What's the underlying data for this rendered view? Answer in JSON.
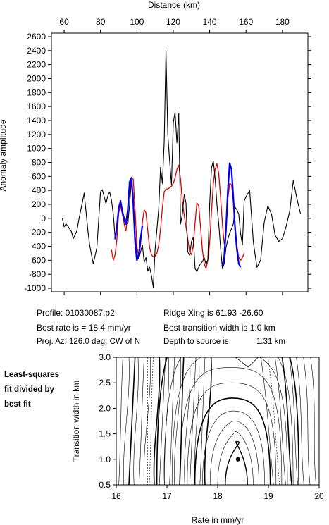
{
  "colors": {
    "observed": "#000000",
    "model": "#e00000",
    "best_fit": "#0000ee",
    "grid": "#000000"
  },
  "info": {
    "profile": "Profile: 01030087.p2",
    "best_rate": "Best rate is = 18.4 mm/yr",
    "proj_az": "Proj. Az: 126.0 deg. CW of N",
    "ridge_xing": "Ridge Xing is 61.93 -26.60",
    "best_width": "Best transition width is 1.0 km",
    "depth_label": "Depth to source is",
    "depth_value": "1.31 km"
  },
  "side_note": [
    "Least-squares",
    "fit divided by",
    "best fit"
  ],
  "chart_data": [
    {
      "type": "line",
      "title": "",
      "xlabel": "Distance (km)",
      "ylabel": "Anomaly amplitude",
      "xlim": [
        53,
        194
      ],
      "ylim": [
        -1050,
        2650
      ],
      "xticks": [
        60,
        80,
        100,
        120,
        140,
        160,
        180
      ],
      "yticks": [
        -1000,
        -800,
        -600,
        -400,
        -200,
        0,
        200,
        400,
        600,
        800,
        1000,
        1200,
        1400,
        1600,
        1800,
        2000,
        2200,
        2400,
        2600
      ],
      "series": [
        {
          "role": "observed",
          "x": [
            59,
            60,
            61,
            62,
            64,
            65,
            67,
            68,
            70,
            71,
            73,
            74,
            76,
            78,
            80,
            81,
            83,
            84,
            85,
            86,
            87,
            88,
            89,
            90,
            91,
            92,
            93,
            94,
            95,
            96,
            97,
            98,
            99,
            100,
            101,
            102,
            103,
            104,
            105,
            106,
            107,
            108,
            109,
            110,
            111,
            112,
            113,
            114,
            115,
            116,
            117,
            118,
            119,
            120,
            121,
            122,
            123,
            124,
            125,
            126,
            127,
            128,
            129,
            130,
            131,
            132,
            133,
            134,
            135,
            136,
            137,
            138,
            139,
            140,
            141,
            142,
            143,
            144,
            145,
            146,
            147,
            148,
            149,
            150,
            151,
            152,
            153,
            154,
            155,
            156,
            157,
            158,
            159,
            160,
            162,
            164,
            166,
            168,
            170,
            172,
            174,
            176,
            178,
            180,
            182,
            184,
            186,
            188,
            190
          ],
          "y": [
            0,
            -120,
            -80,
            -110,
            -190,
            -290,
            -180,
            -30,
            230,
            360,
            -160,
            -380,
            -650,
            -420,
            380,
            410,
            210,
            320,
            380,
            260,
            60,
            -280,
            -160,
            130,
            250,
            70,
            20,
            -40,
            -80,
            200,
            560,
            320,
            -240,
            -520,
            -580,
            -480,
            -380,
            -630,
            -560,
            -750,
            -700,
            -820,
            -990,
            -450,
            -160,
            140,
            730,
            500,
            1100,
            2400,
            1200,
            820,
            480,
            1370,
            1520,
            1080,
            1500,
            -80,
            60,
            340,
            220,
            -480,
            -530,
            -330,
            -270,
            -720,
            -760,
            -700,
            -650,
            -620,
            -560,
            -660,
            -590,
            200,
            720,
            820,
            580,
            200,
            -80,
            -420,
            -720,
            -650,
            -420,
            -300,
            -210,
            -150,
            -80,
            160,
            120,
            60,
            -220,
            -380,
            250,
            310,
            400,
            -340,
            -700,
            -600,
            -60,
            180,
            60,
            -240,
            -330,
            -290,
            -120,
            100,
            540,
            280,
            60
          ]
        },
        {
          "role": "model",
          "x": [
            86,
            87,
            88,
            89,
            90,
            91,
            92,
            93,
            94,
            95,
            96,
            97,
            98,
            99,
            100,
            101,
            102,
            103,
            104,
            105,
            106,
            107,
            108,
            109,
            110,
            111,
            112,
            113,
            114,
            115,
            116,
            117,
            118,
            119,
            120,
            121,
            122,
            123,
            124,
            125,
            126,
            127,
            128,
            129,
            130,
            131,
            132,
            133,
            134,
            135,
            136,
            137,
            138,
            139,
            140,
            141,
            142,
            143,
            144,
            145,
            146,
            147,
            148,
            149,
            150,
            151,
            152,
            153,
            154,
            155,
            156,
            157,
            158,
            159
          ],
          "y": [
            -450,
            -600,
            -520,
            -300,
            80,
            180,
            60,
            -80,
            -180,
            80,
            400,
            580,
            560,
            100,
            -400,
            -560,
            -380,
            -50,
            120,
            80,
            -180,
            -420,
            -520,
            -550,
            -540,
            -500,
            -380,
            -150,
            150,
            380,
            420,
            420,
            440,
            460,
            500,
            580,
            700,
            760,
            560,
            240,
            40,
            -120,
            -300,
            -480,
            -520,
            -380,
            -60,
            220,
            180,
            -120,
            -450,
            -650,
            -720,
            -600,
            -350,
            100,
            500,
            700,
            780,
            640,
            300,
            -80,
            -360,
            -220,
            280,
            500,
            480,
            250,
            -100,
            -400,
            -560,
            -600,
            -560,
            -500
          ]
        },
        {
          "role": "best_fit",
          "x": [
            88,
            89,
            90,
            91,
            92,
            93,
            94,
            95,
            96,
            97,
            98,
            99,
            100,
            101,
            102,
            103,
            104,
            105,
            106,
            107,
            108,
            109,
            110,
            111,
            112,
            113,
            114,
            115,
            116,
            117,
            118,
            119,
            120,
            121,
            122,
            123,
            124,
            125,
            126,
            127,
            128,
            129,
            130,
            131,
            132,
            133,
            134,
            135,
            136,
            137,
            138,
            139,
            140,
            141,
            142,
            143,
            144,
            145,
            146,
            147,
            148,
            149,
            150,
            151,
            152,
            153,
            154,
            155,
            156,
            157
          ],
          "y": [
            -300,
            -120,
            150,
            250,
            100,
            -20,
            -80,
            120,
            520,
            580,
            200,
            -350,
            -600,
            -520,
            -300,
            -100,
            0,
            0,
            0,
            0,
            0,
            0,
            0,
            0,
            0,
            0,
            0,
            0,
            0,
            0,
            0,
            0,
            0,
            0,
            0,
            0,
            0,
            0,
            0,
            0,
            0,
            0,
            0,
            0,
            0,
            0,
            0,
            0,
            0,
            0,
            0,
            0,
            0,
            0,
            0,
            0,
            0,
            0,
            0,
            -680,
            -560,
            -150,
            400,
            790,
            700,
            300,
            -150,
            -450,
            -650,
            -700
          ]
        }
      ]
    },
    {
      "type": "contour",
      "title": "",
      "xlabel": "Rate in mm/yr",
      "ylabel": "Transition width in km",
      "xlim": [
        16,
        20
      ],
      "ylim": [
        0.5,
        3.0
      ],
      "xticks": [
        16,
        17,
        18,
        19,
        20
      ],
      "yticks": [
        0.5,
        1.0,
        1.5,
        2.0,
        2.5,
        3.0
      ],
      "best_fit_point": [
        18.4,
        1.0
      ]
    }
  ]
}
